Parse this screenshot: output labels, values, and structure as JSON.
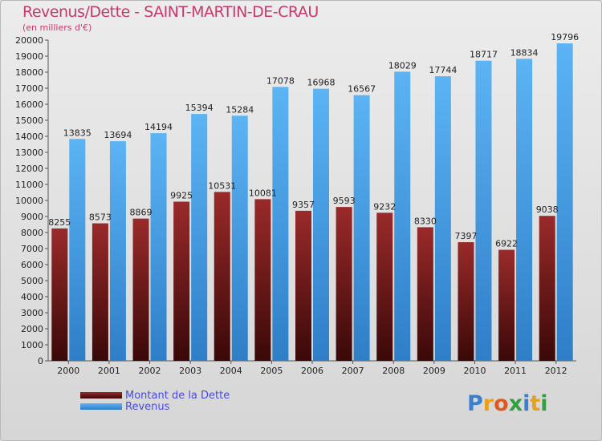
{
  "title": "Revenus/Dette - SAINT-MARTIN-DE-CRAU",
  "subtitle": "(en milliers d'€)",
  "logo": {
    "letters": [
      "P",
      "r",
      "o",
      "x",
      "i",
      "t",
      "i"
    ],
    "colors": [
      "#3a7fd0",
      "#e8a020",
      "#e05a20",
      "#30a040",
      "#3a7fd0",
      "#e8a020",
      "#30a040"
    ]
  },
  "chart_data": {
    "type": "bar",
    "categories": [
      "2000",
      "2001",
      "2002",
      "2003",
      "2004",
      "2005",
      "2006",
      "2007",
      "2008",
      "2009",
      "2010",
      "2011",
      "2012"
    ],
    "series": [
      {
        "name": "Montant de la Dette",
        "color": "#7a1b1b",
        "values": [
          8255,
          8573,
          8869,
          9925,
          10531,
          10081,
          9357,
          9593,
          9232,
          8330,
          7397,
          6922,
          9038
        ],
        "labels": [
          "8255",
          "8573",
          "8869",
          "9925",
          "10531",
          "10081",
          "9357",
          "9593",
          "9232",
          "8330",
          "7397",
          "6922",
          "9038"
        ]
      },
      {
        "name": "Revenus",
        "color": "#3e98de",
        "values": [
          13835,
          13694,
          14194,
          15394,
          15284,
          17078,
          16968,
          16567,
          18029,
          17744,
          18717,
          18834,
          19796
        ],
        "labels": [
          "13835",
          "13694",
          "14194",
          "15394",
          "15284",
          "17078",
          "16968",
          "16567",
          "18029",
          "17744",
          "18717",
          "18834",
          "19796"
        ]
      }
    ],
    "ylim": [
      0,
      20000
    ],
    "ytick_step": 1000,
    "grid": false,
    "legend_position": "bottom-left"
  }
}
